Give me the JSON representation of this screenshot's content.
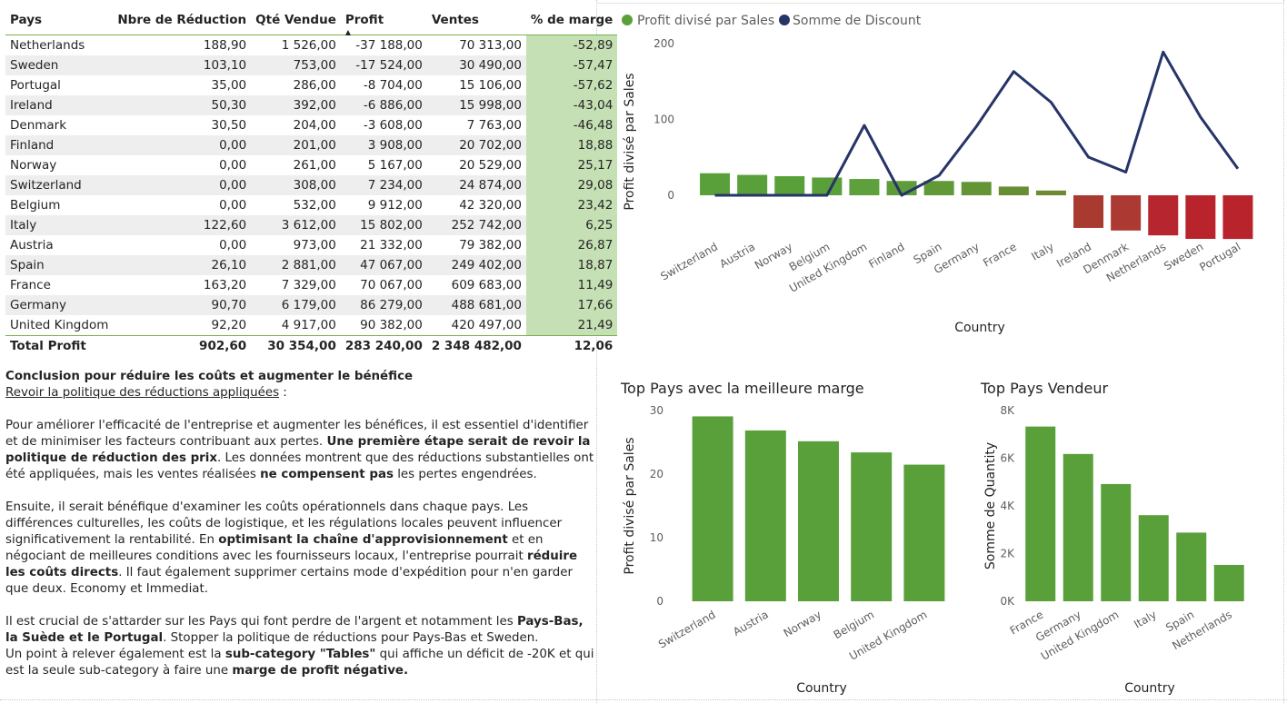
{
  "table": {
    "headers": [
      "Pays",
      "Nbre de Réduction",
      "Qté Vendue",
      "Profit",
      "Ventes",
      "% de marge"
    ],
    "sorted_column": "Profit",
    "rows": [
      [
        "Netherlands",
        "188,90",
        "1 526,00",
        "-37 188,00",
        "70 313,00",
        "-52,89"
      ],
      [
        "Sweden",
        "103,10",
        "753,00",
        "-17 524,00",
        "30 490,00",
        "-57,47"
      ],
      [
        "Portugal",
        "35,00",
        "286,00",
        "-8 704,00",
        "15 106,00",
        "-57,62"
      ],
      [
        "Ireland",
        "50,30",
        "392,00",
        "-6 886,00",
        "15 998,00",
        "-43,04"
      ],
      [
        "Denmark",
        "30,50",
        "204,00",
        "-3 608,00",
        "7 763,00",
        "-46,48"
      ],
      [
        "Finland",
        "0,00",
        "201,00",
        "3 908,00",
        "20 702,00",
        "18,88"
      ],
      [
        "Norway",
        "0,00",
        "261,00",
        "5 167,00",
        "20 529,00",
        "25,17"
      ],
      [
        "Switzerland",
        "0,00",
        "308,00",
        "7 234,00",
        "24 874,00",
        "29,08"
      ],
      [
        "Belgium",
        "0,00",
        "532,00",
        "9 912,00",
        "42 320,00",
        "23,42"
      ],
      [
        "Italy",
        "122,60",
        "3 612,00",
        "15 802,00",
        "252 742,00",
        "6,25"
      ],
      [
        "Austria",
        "0,00",
        "973,00",
        "21 332,00",
        "79 382,00",
        "26,87"
      ],
      [
        "Spain",
        "26,10",
        "2 881,00",
        "47 067,00",
        "249 402,00",
        "18,87"
      ],
      [
        "France",
        "163,20",
        "7 329,00",
        "70 067,00",
        "609 683,00",
        "11,49"
      ],
      [
        "Germany",
        "90,70",
        "6 179,00",
        "86 279,00",
        "488 681,00",
        "17,66"
      ],
      [
        "United Kingdom",
        "92,20",
        "4 917,00",
        "90 382,00",
        "420 497,00",
        "21,49"
      ]
    ],
    "total": [
      "Total Profit",
      "902,60",
      "30 354,00",
      "283 240,00",
      "2 348 482,00",
      "12,06"
    ]
  },
  "text": {
    "title": "Conclusion pour réduire les coûts et augmenter le bénéfice",
    "subtitle": "Revoir la politique des réductions appliquées",
    "subtitle_suffix": " :",
    "p1_a": "Pour améliorer l'efficacité de l'entreprise et augmenter les bénéfices, il est essentiel d'identifier et de minimiser les facteurs contribuant aux pertes. ",
    "p1_b": "Une première étape serait de revoir la politique de réduction des prix",
    "p1_c": ". Les données montrent que des réductions substantielles ont été appliquées, mais les ventes réalisées ",
    "p1_d": "ne compensent pas",
    "p1_e": " les pertes engendrées.",
    "p2_a": "Ensuite, il serait bénéfique d'examiner les coûts opérationnels dans chaque pays. Les différences culturelles, les coûts de logistique, et les régulations locales peuvent influencer significativement la rentabilité. En ",
    "p2_b": "optimisant la chaîne d'approvisionnement",
    "p2_c": " et en négociant de meilleures conditions avec les fournisseurs locaux, l'entreprise pourrait ",
    "p2_d": "réduire les coûts directs",
    "p2_e": ". Il faut également supprimer certains mode d'expédition pour n'en garder que deux. Economy et Immediat.",
    "p3_a": "Il est crucial de s'attarder sur les Pays qui font perdre de l'argent et notamment les ",
    "p3_b": "Pays-Bas, la Suède et le Portugal",
    "p3_c": ". Stopper la politique de réductions pour Pays-Bas et Sweden.",
    "p4_a": "Un point à relever également est la ",
    "p4_b": "sub-category \"Tables\"",
    "p4_c": " qui affiche un déficit de -20K et qui est la seule sub-category à faire une ",
    "p4_d": "marge de profit négative."
  },
  "chart_data": [
    {
      "type": "bar",
      "legend": [
        "Profit  divisé par  Sales",
        "Somme de  Discount"
      ],
      "legend_placement": "top-left",
      "categories": [
        "Switzerland",
        "Austria",
        "Norway",
        "Belgium",
        "United Kingdom",
        "Finland",
        "Spain",
        "Germany",
        "France",
        "Italy",
        "Ireland",
        "Denmark",
        "Netherlands",
        "Sweden",
        "Portugal"
      ],
      "series": [
        {
          "name": "Profit  divisé par  Sales",
          "type": "bar",
          "values": [
            29.08,
            26.87,
            25.17,
            23.42,
            21.49,
            18.88,
            18.87,
            17.66,
            11.49,
            6.25,
            -43.04,
            -46.48,
            -52.89,
            -57.47,
            -57.62
          ]
        },
        {
          "name": "Somme de  Discount",
          "type": "line",
          "values": [
            0,
            0,
            0,
            0,
            92.2,
            0,
            26.1,
            90.7,
            163.2,
            122.6,
            50.3,
            30.5,
            188.9,
            103.1,
            35.0
          ]
        }
      ],
      "bar_colors": [
        "#5aa03a",
        "#5aa03a",
        "#5aa03a",
        "#5aa03a",
        "#5ea03c",
        "#5e9c3a",
        "#619838",
        "#639536",
        "#688e34",
        "#6e8a33",
        "#a83a30",
        "#ad3a32",
        "#b7262e",
        "#b8232c",
        "#b8232c"
      ],
      "line_color": "#263468",
      "ylabel": "Profit divisé par Sales",
      "xlabel": "Country",
      "yticks": [
        "200",
        "100",
        "0"
      ],
      "ylim": [
        -60,
        200
      ]
    },
    {
      "type": "bar",
      "title": "Top Pays avec la meilleure marge",
      "categories": [
        "Switzerland",
        "Austria",
        "Norway",
        "Belgium",
        "United Kingdom"
      ],
      "values": [
        29.08,
        26.87,
        25.17,
        23.42,
        21.49
      ],
      "color": "#5aa03a",
      "ylabel": "Profit divisé par Sales",
      "xlabel": "Country",
      "yticks": [
        "30",
        "20",
        "10",
        "0"
      ],
      "ylim": [
        0,
        30
      ]
    },
    {
      "type": "bar",
      "title": "Top Pays Vendeur",
      "categories": [
        "France",
        "Germany",
        "United Kingdom",
        "Italy",
        "Spain",
        "Netherlands"
      ],
      "values": [
        7329,
        6179,
        4917,
        3612,
        2881,
        1526
      ],
      "color": "#5aa03a",
      "ylabel": "Somme de Quantity",
      "xlabel": "Country",
      "yticks": [
        "8K",
        "6K",
        "4K",
        "2K",
        "0K"
      ],
      "ylim": [
        0,
        8000
      ]
    }
  ]
}
